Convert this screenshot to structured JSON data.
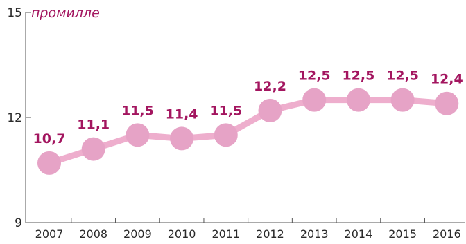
{
  "chart_data": {
    "type": "line",
    "unit_label": "промилле",
    "categories": [
      "2007",
      "2008",
      "2009",
      "2010",
      "2011",
      "2012",
      "2013",
      "2014",
      "2015",
      "2016"
    ],
    "values": [
      10.7,
      11.1,
      11.5,
      11.4,
      11.5,
      12.2,
      12.5,
      12.5,
      12.5,
      12.4
    ],
    "value_labels": [
      "10,7",
      "11,1",
      "11,5",
      "11,4",
      "11,5",
      "12,2",
      "12,5",
      "12,5",
      "12,5",
      "12,4"
    ],
    "ylim": [
      9,
      15
    ],
    "y_ticks": [
      9,
      12,
      15
    ],
    "y_tick_labels": [
      "9",
      "12",
      "15"
    ],
    "grid": false,
    "legend": "none"
  },
  "colors": {
    "line": "#eeaecd",
    "marker": "#e6a3c6",
    "label": "#a3155f",
    "axis": "#555555"
  }
}
